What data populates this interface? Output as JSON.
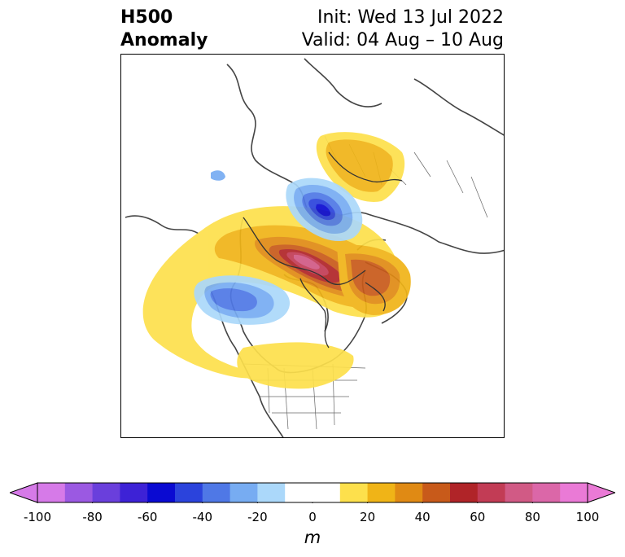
{
  "title": {
    "left_line1": "H500",
    "left_line2": "Anomaly",
    "right_line1": "Init: Wed 13 Jul 2022",
    "right_line2": "Valid: 04 Aug – 10 Aug"
  },
  "colorbar": {
    "unit": "m",
    "min": -100,
    "max": 100,
    "step": 10,
    "extend": "both",
    "ticks": [
      "-100",
      "-80",
      "-60",
      "-40",
      "-20",
      "0",
      "20",
      "40",
      "60",
      "80",
      "100"
    ],
    "low_extend_color": "#d67ae8",
    "high_extend_color": "#ea7ad6",
    "colors": [
      "#d67ae8",
      "#9b59e2",
      "#6a3fdc",
      "#3d22d6",
      "#0a0ad2",
      "#2b43dc",
      "#4f78e6",
      "#77acf2",
      "#abd8fa",
      "#ffffff",
      "#ffffff",
      "#fde04c",
      "#f0b417",
      "#e08a14",
      "#c85a1a",
      "#b02428",
      "#c23c55",
      "#d15a85",
      "#db67a8",
      "#ea7ad6"
    ]
  }
}
